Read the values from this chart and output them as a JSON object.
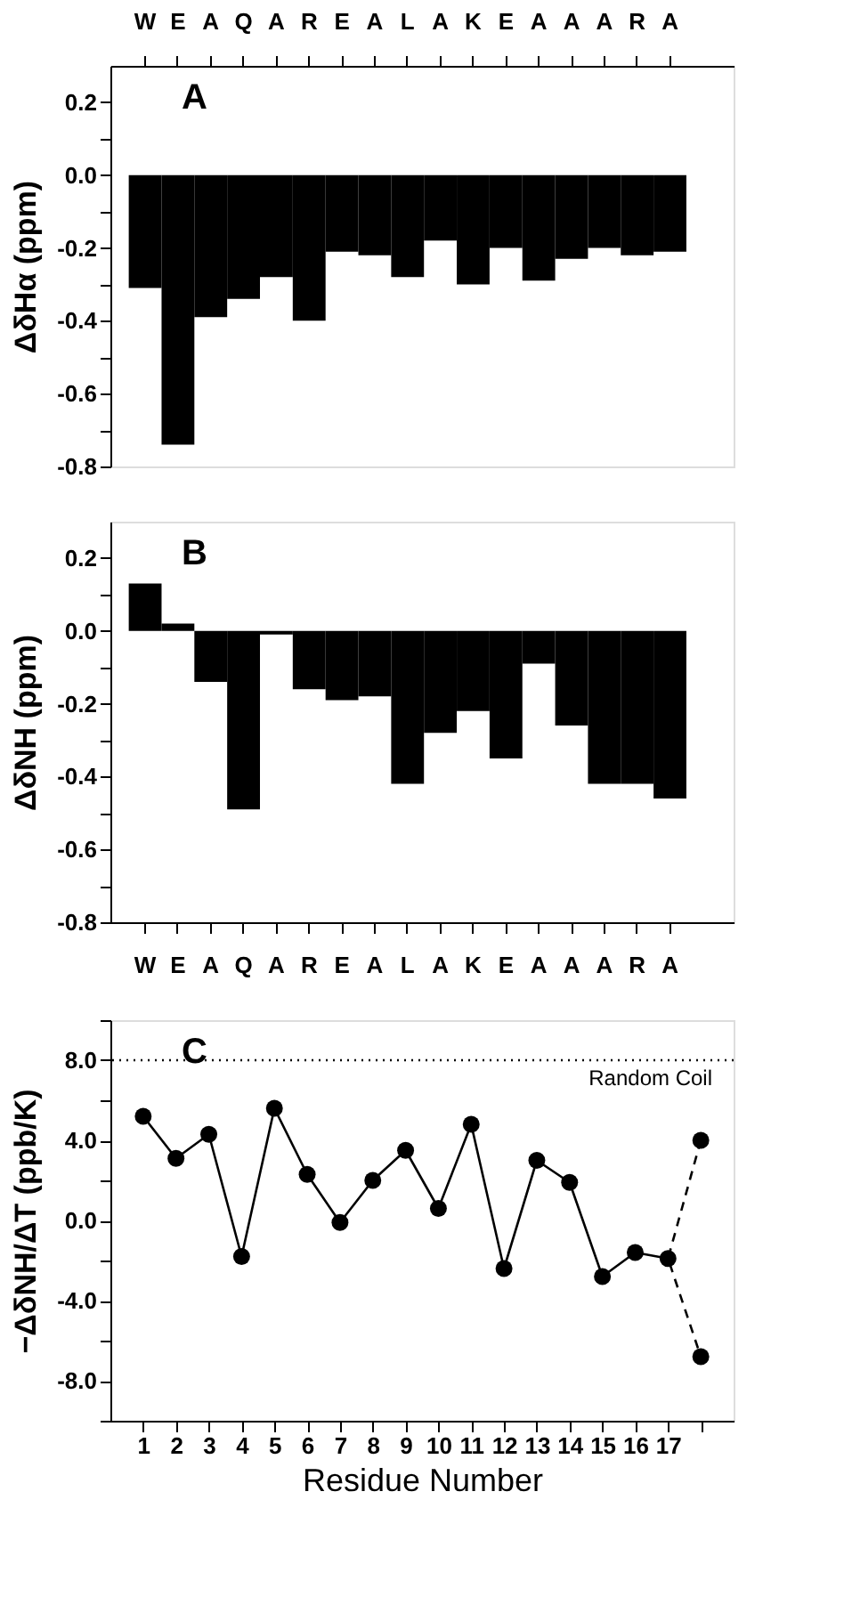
{
  "chart_data": [
    {
      "type": "bar",
      "ylabel": "ΔδHα (ppm)",
      "annotations": [
        "A"
      ],
      "color": "#000000",
      "categories": [
        "W",
        "E",
        "A",
        "Q",
        "A",
        "R",
        "E",
        "A",
        "L",
        "A",
        "K",
        "E",
        "A",
        "A",
        "A",
        "R",
        "A"
      ],
      "values": [
        -0.31,
        -0.74,
        -0.39,
        -0.34,
        -0.28,
        -0.4,
        -0.21,
        -0.22,
        -0.28,
        -0.18,
        -0.3,
        -0.2,
        -0.29,
        -0.23,
        -0.2,
        -0.22,
        -0.21
      ],
      "ylim": [
        -0.8,
        0.3
      ],
      "yticks": [
        {
          "value": -0.8,
          "label": "-0.8"
        },
        {
          "value": -0.7,
          "label": null
        },
        {
          "value": -0.6,
          "label": "-0.6"
        },
        {
          "value": -0.5,
          "label": null
        },
        {
          "value": -0.4,
          "label": "-0.4"
        },
        {
          "value": -0.3,
          "label": null
        },
        {
          "value": -0.2,
          "label": "-0.2"
        },
        {
          "value": -0.1,
          "label": null
        },
        {
          "value": 0,
          "label": "0.0"
        },
        {
          "value": 0.1,
          "label": null
        },
        {
          "value": 0.2,
          "label": "0.2"
        }
      ]
    },
    {
      "type": "bar",
      "ylabel": "ΔδNH (ppm)",
      "annotations": [
        "B"
      ],
      "color": "#000000",
      "categories": [
        "W",
        "E",
        "A",
        "Q",
        "A",
        "R",
        "E",
        "A",
        "L",
        "A",
        "K",
        "E",
        "A",
        "A",
        "A",
        "R",
        "A"
      ],
      "values": [
        0.13,
        0.02,
        -0.14,
        -0.49,
        -0.01,
        -0.16,
        -0.19,
        -0.18,
        -0.42,
        -0.28,
        -0.22,
        -0.35,
        -0.09,
        -0.26,
        -0.42,
        -0.42,
        -0.46
      ],
      "ylim": [
        -0.8,
        0.3
      ],
      "yticks": [
        {
          "value": -0.8,
          "label": "-0.8"
        },
        {
          "value": -0.7,
          "label": null
        },
        {
          "value": -0.6,
          "label": "-0.6"
        },
        {
          "value": -0.5,
          "label": null
        },
        {
          "value": -0.4,
          "label": "-0.4"
        },
        {
          "value": -0.3,
          "label": null
        },
        {
          "value": -0.2,
          "label": "-0.2"
        },
        {
          "value": -0.1,
          "label": null
        },
        {
          "value": 0,
          "label": "0.0"
        },
        {
          "value": 0.1,
          "label": null
        },
        {
          "value": 0.2,
          "label": "0.2"
        }
      ]
    },
    {
      "type": "line",
      "xlabel": "Residue Number",
      "ylabel": "−ΔδNH/ΔT (ppb/K)",
      "annotations": [
        "C"
      ],
      "marker": "circle",
      "line_style": "solid",
      "series": [
        {
          "color": "#000000",
          "x": [
            1,
            2,
            3,
            4,
            5,
            6,
            7,
            8,
            9,
            10,
            11,
            12,
            13,
            14,
            15,
            16,
            17
          ],
          "values": [
            5.2,
            3.1,
            4.3,
            -1.8,
            5.6,
            2.3,
            -0.1,
            2.0,
            3.5,
            0.6,
            4.8,
            -2.4,
            3.0,
            1.9,
            -2.8,
            -1.6,
            -1.9
          ]
        },
        {
          "type": "line",
          "color": "#000000",
          "line_style": "dashed",
          "marker": "none",
          "x": [
            18,
            17,
            18
          ],
          "values": [
            4.0,
            -1.9,
            -6.8
          ]
        },
        {
          "type": "scatter",
          "color": "#000000",
          "x": [
            18,
            18
          ],
          "values": [
            4.0,
            -6.8
          ]
        }
      ],
      "ref_lines": [
        {
          "axis": "y",
          "value": 8.0,
          "label": "Random Coil",
          "line_style": "dotted",
          "color": "#000000"
        }
      ],
      "xlim": [
        0,
        19
      ],
      "xticks": [
        1,
        2,
        3,
        4,
        5,
        6,
        7,
        8,
        9,
        10,
        11,
        12,
        13,
        14,
        15,
        16,
        17,
        {
          "value": 18,
          "label": null
        }
      ],
      "ylim": [
        -10,
        10
      ],
      "yticks": [
        {
          "value": -10,
          "label": null
        },
        {
          "value": -8,
          "label": "-8.0"
        },
        {
          "value": -6,
          "label": null
        },
        {
          "value": -4,
          "label": "-4.0"
        },
        {
          "value": -2,
          "label": null
        },
        {
          "value": 0,
          "label": "0.0"
        },
        {
          "value": 2,
          "label": null
        },
        {
          "value": 4,
          "label": "4.0"
        },
        {
          "value": 6,
          "label": null
        },
        {
          "value": 8,
          "label": "8.0"
        },
        {
          "value": 10,
          "label": null
        }
      ]
    }
  ]
}
